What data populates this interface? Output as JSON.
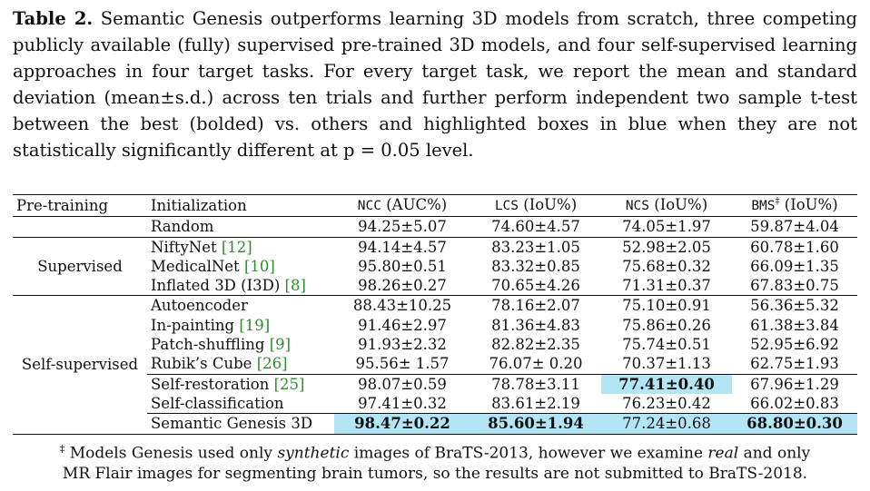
{
  "caption": {
    "lead": "Table 2.",
    "text": "Semantic Genesis outperforms learning 3D models from scratch, three competing publicly available (fully) supervised pre-trained 3D models, and four self-supervised learning approaches in four target tasks. For every target task, we report the mean and standard deviation (mean±s.d.) across ten trials and further perform independent two sample t-test between the best (bolded) vs. others and highlighted boxes in blue when they are not statistically significantly different at p = 0.05 level."
  },
  "colors": {
    "highlight": "#b3e5f5",
    "citation": "#2e8b2e"
  },
  "table": {
    "headers": {
      "pretraining": "Pre-training",
      "initialization": "Initialization",
      "ncc_abbr": "NCC",
      "ncc_unit": "(AUC%)",
      "lcs_abbr": "LCS",
      "lcs_unit": "(IoU%)",
      "ncs_abbr": "NCS",
      "ncs_unit": "(IoU%)",
      "bms_abbr": "BMS",
      "bms_mark": "‡",
      "bms_unit": "(IoU%)"
    },
    "groups": {
      "none": {
        "label": ""
      },
      "supervised": {
        "label": "Supervised"
      },
      "selfsupervised": {
        "label": "Self-supervised"
      }
    },
    "rows": [
      {
        "name": "Random",
        "cite": "",
        "ncc": "94.25±5.07",
        "lcs": "74.60±4.57",
        "ncs": "74.05±1.97",
        "bms": "59.87±4.04"
      },
      {
        "name": "NiftyNet",
        "cite": "[12]",
        "ncc": "94.14±4.57",
        "lcs": "83.23±1.05",
        "ncs": "52.98±2.05",
        "bms": "60.78±1.60"
      },
      {
        "name": "MedicalNet",
        "cite": "[10]",
        "ncc": "95.80±0.51",
        "lcs": "83.32±0.85",
        "ncs": "75.68±0.32",
        "bms": "66.09±1.35"
      },
      {
        "name": "Inflated 3D (I3D)",
        "cite": "[8]",
        "ncc": "98.26±0.27",
        "lcs": "70.65±4.26",
        "ncs": "71.31±0.37",
        "bms": "67.83±0.75"
      },
      {
        "name": "Autoencoder",
        "cite": "",
        "ncc": "88.43±10.25",
        "lcs": "78.16±2.07",
        "ncs": "75.10±0.91",
        "bms": "56.36±5.32"
      },
      {
        "name": "In-painting",
        "cite": "[19]",
        "ncc": "91.46±2.97",
        "lcs": "81.36±4.83",
        "ncs": "75.86±0.26",
        "bms": "61.38±3.84"
      },
      {
        "name": "Patch-shuffling",
        "cite": "[9]",
        "ncc": "91.93±2.32",
        "lcs": "82.82±2.35",
        "ncs": "75.74±0.51",
        "bms": "52.95±6.92"
      },
      {
        "name": "Rubik’s Cube",
        "cite": "[26]",
        "ncc": "95.56± 1.57",
        "lcs": "76.07± 0.20",
        "ncs": "70.37±1.13",
        "bms": "62.75±1.93"
      },
      {
        "name": "Self-restoration",
        "cite": "[25]",
        "ncc": "98.07±0.59",
        "lcs": "78.78±3.11",
        "ncs": "77.41±0.40",
        "bms": "67.96±1.29"
      },
      {
        "name": "Self-classification",
        "cite": "",
        "ncc": "97.41±0.32",
        "lcs": "83.61±2.19",
        "ncs": "76.23±0.42",
        "bms": "66.02±0.83"
      },
      {
        "name": "Semantic Genesis 3D",
        "cite": "",
        "ncc": "98.47±0.22",
        "lcs": "85.60±1.94",
        "ncs": "77.24±0.68",
        "bms": "68.80±0.30"
      }
    ]
  },
  "footnote": {
    "mark": "‡",
    "line1_a": "Models Genesis used only",
    "line1_em1": "synthetic",
    "line1_b": "images of BraTS-2013, however we examine",
    "line1_em2": "real",
    "line1_c": "and only",
    "line2": "MR Flair images for segmenting brain tumors, so the results are not submitted to BraTS-2018."
  }
}
